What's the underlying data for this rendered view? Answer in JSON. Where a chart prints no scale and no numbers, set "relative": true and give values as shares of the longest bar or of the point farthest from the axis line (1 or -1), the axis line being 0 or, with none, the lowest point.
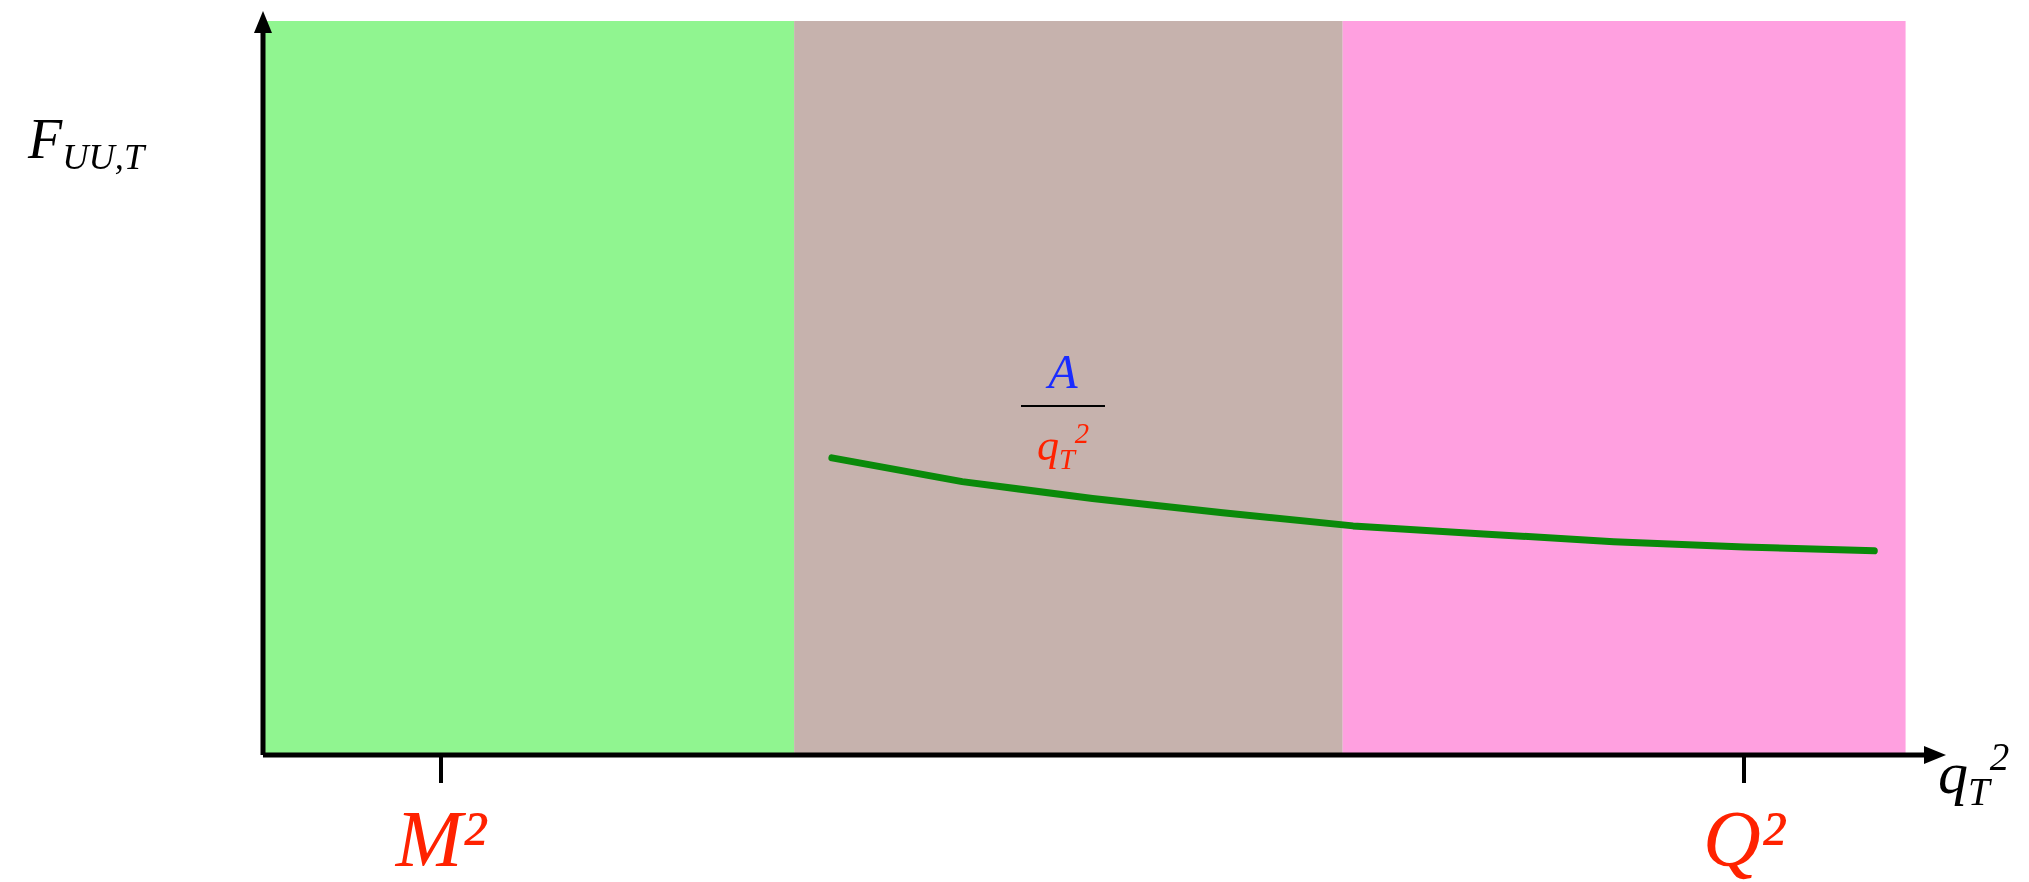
{
  "chart_data": {
    "type": "line",
    "relative": true,
    "xlabel": "q$_{T}$$^{2}$",
    "categories": [
      "M²",
      null,
      null,
      null,
      null,
      null,
      null,
      null,
      null,
      null,
      "Q²",
      null
    ],
    "annotations": [
      "F$_{UU,T}$",
      "A",
      "q$_{T}$$^{2}$"
    ],
    "series": [
      {
        "color": "#0a8a0a",
        "values": [
          null,
          null,
          null,
          1,
          0.92,
          0.863,
          0.815,
          0.771,
          0.744,
          0.718,
          0.7,
          0.687
        ]
      }
    ]
  }
}
